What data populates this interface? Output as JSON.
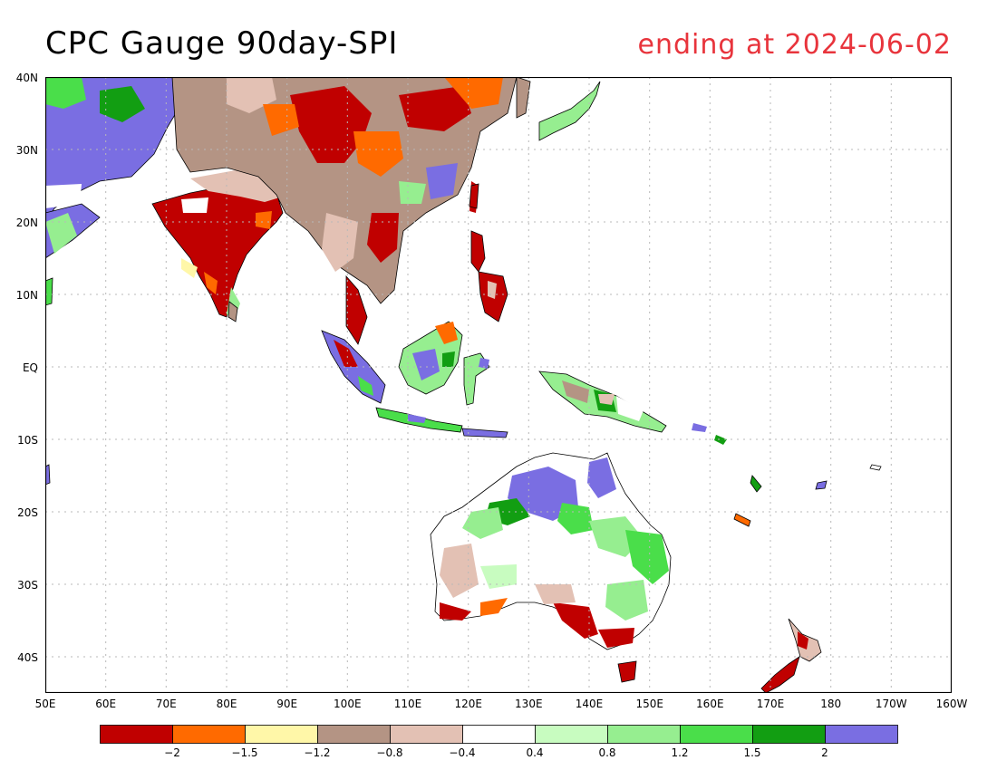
{
  "title": {
    "left": "CPC Gauge 90day-SPI",
    "right": "ending at 2024-06-02"
  },
  "axes": {
    "lat_labels": [
      "40N",
      "30N",
      "20N",
      "10N",
      "EQ",
      "10S",
      "20S",
      "30S",
      "40S"
    ],
    "lon_labels": [
      "50E",
      "60E",
      "70E",
      "80E",
      "90E",
      "100E",
      "110E",
      "120E",
      "130E",
      "140E",
      "150E",
      "160E",
      "170E",
      "180",
      "170W",
      "160W"
    ],
    "lat_range": [
      -45,
      40
    ],
    "lon_range": [
      50,
      200
    ],
    "grid": true,
    "grid_style": "dotted"
  },
  "colorbar": {
    "colors": [
      "#c00000",
      "#ff6a00",
      "#fff7a8",
      "#b49484",
      "#e3c1b4",
      "#ffffff",
      "#c8fcc0",
      "#96ee90",
      "#4ade4a",
      "#129e12",
      "#7a6ee2"
    ],
    "labels": [
      "−2",
      "−1.5",
      "−1.2",
      "−0.8",
      "−0.4",
      "0.4",
      "0.8",
      "1.2",
      "1.5",
      "2"
    ]
  },
  "colors": {
    "coast": "#000000",
    "frame": "#000000",
    "grid": "#b8b8b8"
  }
}
